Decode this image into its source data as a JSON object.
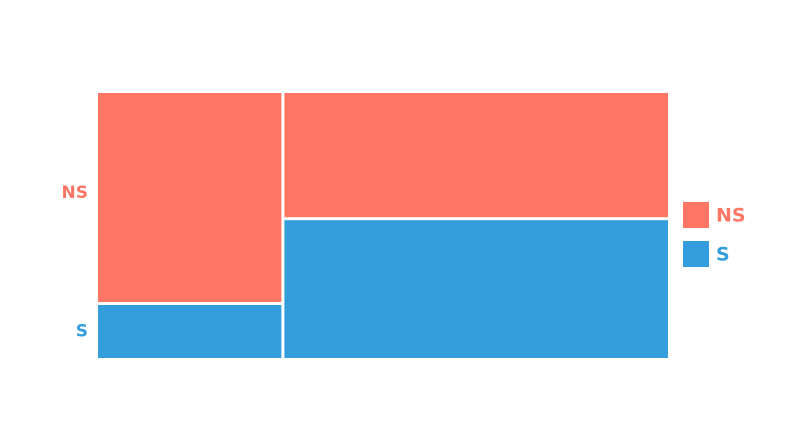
{
  "chart_data": {
    "type": "mosaic",
    "title": "",
    "xlabel": "",
    "ylabel": "",
    "columns": [
      {
        "width_share": 0.327,
        "segments": {
          "NS": 0.8,
          "S": 0.2
        }
      },
      {
        "width_share": 0.673,
        "segments": {
          "NS": 0.48,
          "S": 0.52
        }
      }
    ],
    "categories": [
      "NS",
      "S"
    ],
    "colors": {
      "NS": "#FF7665",
      "S": "#349EDC"
    },
    "legend": {
      "placement": "right",
      "entries": [
        {
          "label": "NS",
          "color": "#FF7665"
        },
        {
          "label": "S",
          "color": "#349EDC"
        }
      ]
    },
    "y_tick_labels": [
      "NS",
      "S"
    ]
  }
}
